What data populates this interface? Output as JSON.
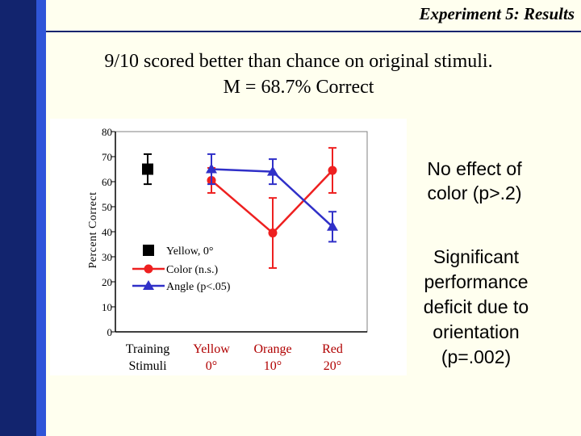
{
  "header": {
    "title": "Experiment 5: Results"
  },
  "summary": {
    "line1": "9/10 scored better than chance on original stimuli.",
    "line2": "M = 68.7% Correct"
  },
  "notes": {
    "color_effect": "No effect of color (p>.2)",
    "orientation_effect": "Significant performance deficit due to orientation (p=.002)"
  },
  "colors": {
    "yellow": "#000000",
    "color": "#EE2020",
    "angle": "#3030C8"
  },
  "chart_data": {
    "type": "line",
    "title": "",
    "xlabel": "",
    "ylabel": "Percent Correct",
    "ylim": [
      0,
      80
    ],
    "yticks": [
      0,
      10,
      20,
      30,
      40,
      50,
      60,
      70,
      80
    ],
    "categories": [
      {
        "line1": "Training",
        "line2": "Stimuli"
      },
      {
        "line1": "Yellow",
        "line2": "0°"
      },
      {
        "line1": "Orange",
        "line2": "10°"
      },
      {
        "line1": "Red",
        "line2": "20°"
      }
    ],
    "series": [
      {
        "name": "Yellow, 0°",
        "marker": "square",
        "color": "#000000",
        "points": [
          {
            "x": 0,
            "y": 65,
            "err": 6
          }
        ]
      },
      {
        "name": "Color (n.s.)",
        "marker": "circle",
        "color": "#EE2020",
        "points": [
          {
            "x": 1,
            "y": 60.5,
            "err": 5
          },
          {
            "x": 2,
            "y": 39.5,
            "err": 14
          },
          {
            "x": 3,
            "y": 64.5,
            "err": 9
          }
        ]
      },
      {
        "name": "Angle (p<.05)",
        "marker": "triangle",
        "color": "#3030C8",
        "points": [
          {
            "x": 1,
            "y": 65,
            "err": 6
          },
          {
            "x": 2,
            "y": 64,
            "err": 5
          },
          {
            "x": 3,
            "y": 42,
            "err": 6
          }
        ]
      }
    ]
  }
}
